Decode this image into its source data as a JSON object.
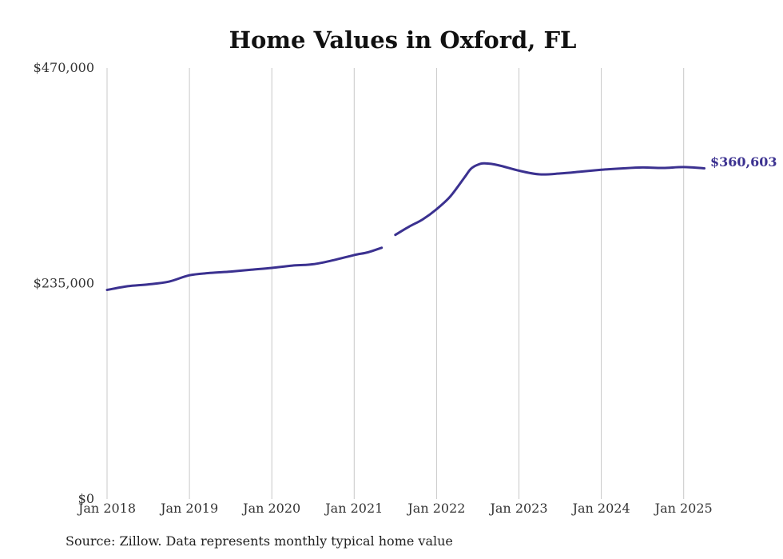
{
  "chart_data": {
    "type": "line",
    "title": "Home Values in Oxford, FL",
    "xlabel": "",
    "ylabel": "",
    "source": "Source: Zillow. Data represents monthly typical home value",
    "ylim": [
      0,
      470000
    ],
    "y_ticks": [
      "$0",
      "$235,000",
      "$470,000"
    ],
    "x_ticks": [
      "Jan 2018",
      "Jan 2019",
      "Jan 2020",
      "Jan 2021",
      "Jan 2022",
      "Jan 2023",
      "Jan 2024",
      "Jan 2025"
    ],
    "grid": "vertical",
    "line_color": "#3b3190",
    "end_label": "$360,603",
    "series": [
      {
        "segments": [
          [
            [
              "2018-01",
              228000
            ],
            [
              "2018-04",
              232000
            ],
            [
              "2018-07",
              234000
            ],
            [
              "2018-10",
              237000
            ],
            [
              "2019-01",
              244000
            ],
            [
              "2019-04",
              246500
            ],
            [
              "2019-07",
              248000
            ],
            [
              "2019-10",
              250000
            ],
            [
              "2020-01",
              252000
            ],
            [
              "2020-04",
              254500
            ],
            [
              "2020-07",
              256000
            ],
            [
              "2020-10",
              260500
            ],
            [
              "2021-01",
              266000
            ],
            [
              "2021-03",
              269000
            ],
            [
              "2021-05",
              274000
            ]
          ],
          [
            [
              "2021-07",
              288000
            ],
            [
              "2021-09",
              297000
            ],
            [
              "2021-11",
              305000
            ],
            [
              "2022-01",
              316000
            ],
            [
              "2022-03",
              330000
            ],
            [
              "2022-05",
              350000
            ],
            [
              "2022-06",
              360000
            ],
            [
              "2022-07",
              364500
            ],
            [
              "2022-08",
              366000
            ],
            [
              "2022-10",
              364000
            ],
            [
              "2023-01",
              358000
            ],
            [
              "2023-04",
              354000
            ],
            [
              "2023-07",
              355000
            ],
            [
              "2023-10",
              357000
            ],
            [
              "2024-01",
              359000
            ],
            [
              "2024-04",
              360500
            ],
            [
              "2024-07",
              361500
            ],
            [
              "2024-10",
              361000
            ],
            [
              "2025-01",
              362000
            ],
            [
              "2025-04",
              360603
            ]
          ]
        ]
      }
    ]
  }
}
